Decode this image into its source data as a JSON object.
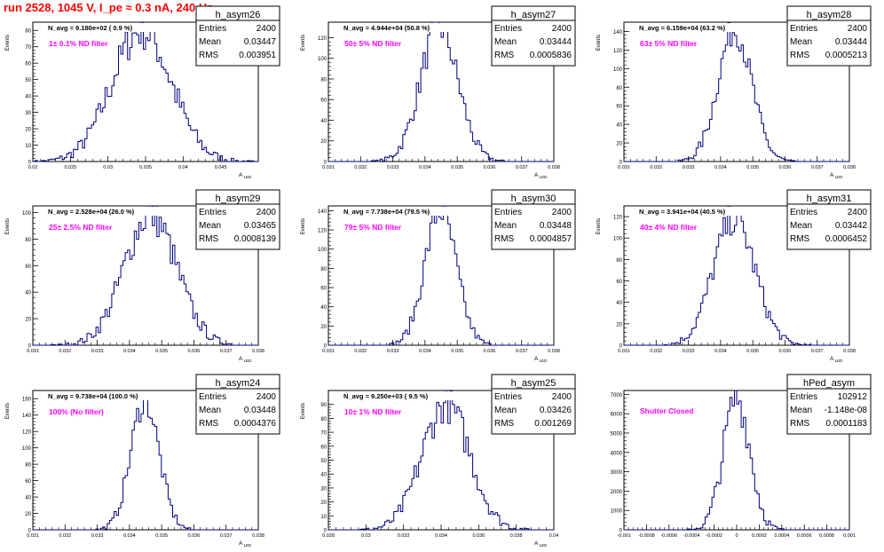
{
  "header": {
    "title": "run 2528,  1045 V, I_pe ≈ 0.3 nA, 240 Hz"
  },
  "colors": {
    "histogram_line": "#000080",
    "filter_label": "#ff00ff",
    "title": "#ff0000",
    "axes": "#000000"
  },
  "chart_data": [
    {
      "type": "histogram",
      "title": "h_asym26",
      "xlabel": "A_LED",
      "ylabel": "Events",
      "xlim": [
        0.02,
        0.05
      ],
      "ylim": [
        0,
        85
      ],
      "xticks": [
        "0.02",
        "0.025",
        "0.03",
        "0.035",
        "0.04",
        "0.045"
      ],
      "yticks": [
        "0",
        "10",
        "20",
        "30",
        "40",
        "50",
        "60",
        "70",
        "80"
      ],
      "navg": "N_avg = 9.180e+02 ( 0.9 %)",
      "label": "1± 0.1% ND filter",
      "stats": {
        "entries": "2400",
        "mean": "0.03447",
        "rms": "0.003951"
      },
      "mean": 0.03447,
      "sigma": 0.003951,
      "peak": 80
    },
    {
      "type": "histogram",
      "title": "h_asym27",
      "xlabel": "A_LED",
      "ylabel": "Events",
      "xlim": [
        0.031,
        0.038
      ],
      "ylim": [
        0,
        135
      ],
      "xticks": [
        "0.031",
        "0.032",
        "0.033",
        "0.034",
        "0.035",
        "0.036",
        "0.037",
        "0.038"
      ],
      "yticks": [
        "0",
        "20",
        "40",
        "60",
        "80",
        "100",
        "120"
      ],
      "navg": "N_avg = 4.944e+04 (50.8 %)",
      "label": "50± 5% ND filter",
      "stats": {
        "entries": "2400",
        "mean": "0.03444",
        "rms": "0.0005836"
      },
      "mean": 0.03444,
      "sigma": 0.0005836,
      "peak": 130
    },
    {
      "type": "histogram",
      "title": "h_asym28",
      "xlabel": "A_LED",
      "ylabel": "Events",
      "xlim": [
        0.031,
        0.038
      ],
      "ylim": [
        0,
        150
      ],
      "xticks": [
        "0.031",
        "0.032",
        "0.033",
        "0.034",
        "0.035",
        "0.036",
        "0.037",
        "0.038"
      ],
      "yticks": [
        "0",
        "20",
        "40",
        "60",
        "80",
        "100",
        "120",
        "140"
      ],
      "navg": "N_avg = 6.159e+04 (63.2 %)",
      "label": "63± 5% ND filter",
      "stats": {
        "entries": "2400",
        "mean": "0.03444",
        "rms": "0.0005213"
      },
      "mean": 0.03444,
      "sigma": 0.0005213,
      "peak": 142
    },
    {
      "type": "histogram",
      "title": "h_asym29",
      "xlabel": "A_LED",
      "ylabel": "Events",
      "xlim": [
        0.031,
        0.038
      ],
      "ylim": [
        0,
        105
      ],
      "xticks": [
        "0.031",
        "0.032",
        "0.033",
        "0.034",
        "0.035",
        "0.036",
        "0.037",
        "0.038"
      ],
      "yticks": [
        "0",
        "20",
        "40",
        "60",
        "80",
        "100"
      ],
      "navg": "N_avg = 2.528e+04 (26.0 %)",
      "label": "25± 2.5% ND filter",
      "stats": {
        "entries": "2400",
        "mean": "0.03465",
        "rms": "0.0008139"
      },
      "mean": 0.03465,
      "sigma": 0.0008139,
      "peak": 98
    },
    {
      "type": "histogram",
      "title": "h_asym30",
      "xlabel": "A_LED",
      "ylabel": "Events",
      "xlim": [
        0.031,
        0.038
      ],
      "ylim": [
        0,
        145
      ],
      "xticks": [
        "0.031",
        "0.032",
        "0.033",
        "0.034",
        "0.035",
        "0.036",
        "0.037",
        "0.038"
      ],
      "yticks": [
        "0",
        "20",
        "40",
        "60",
        "80",
        "100",
        "120",
        "140"
      ],
      "navg": "N_avg = 7.738e+04 (79.5 %)",
      "label": "79± 5% ND filter",
      "stats": {
        "entries": "2400",
        "mean": "0.03448",
        "rms": "0.0004857"
      },
      "mean": 0.03448,
      "sigma": 0.0004857,
      "peak": 140
    },
    {
      "type": "histogram",
      "title": "h_asym31",
      "xlabel": "A_LED",
      "ylabel": "Events",
      "xlim": [
        0.031,
        0.038
      ],
      "ylim": [
        0,
        130
      ],
      "xticks": [
        "0.031",
        "0.032",
        "0.033",
        "0.034",
        "0.035",
        "0.036",
        "0.037",
        "0.038"
      ],
      "yticks": [
        "0",
        "20",
        "40",
        "60",
        "80",
        "100",
        "120"
      ],
      "navg": "N_avg = 3.941e+04 (40.5 %)",
      "label": "40± 4% ND filter",
      "stats": {
        "entries": "2400",
        "mean": "0.03442",
        "rms": "0.0006452"
      },
      "mean": 0.03442,
      "sigma": 0.0006452,
      "peak": 118
    },
    {
      "type": "histogram",
      "title": "h_asym24",
      "xlabel": "A_LED",
      "ylabel": "Events",
      "xlim": [
        0.031,
        0.038
      ],
      "ylim": [
        0,
        170
      ],
      "xticks": [
        "0.031",
        "0.032",
        "0.033",
        "0.034",
        "0.035",
        "0.036",
        "0.037",
        "0.038"
      ],
      "yticks": [
        "0",
        "20",
        "40",
        "60",
        "80",
        "100",
        "120",
        "140",
        "160"
      ],
      "navg": "N_avg = 9.738e+04 (100.0 %)",
      "label": "100% (No filter)",
      "stats": {
        "entries": "2400",
        "mean": "0.03448",
        "rms": "0.0004376"
      },
      "mean": 0.03448,
      "sigma": 0.0004376,
      "peak": 158
    },
    {
      "type": "histogram",
      "title": "h_asym25",
      "xlabel": "A_LED",
      "ylabel": "Events",
      "xlim": [
        0.028,
        0.04
      ],
      "ylim": [
        0,
        100
      ],
      "xticks": [
        "0.028",
        "0.03",
        "0.032",
        "0.034",
        "0.036",
        "0.038",
        "0.04"
      ],
      "yticks": [
        "0",
        "10",
        "20",
        "30",
        "40",
        "50",
        "60",
        "70",
        "80",
        "90"
      ],
      "navg": "N_avg = 9.250e+03 ( 9.5 %)",
      "label": "10± 1% ND filter",
      "stats": {
        "entries": "2400",
        "mean": "0.03426",
        "rms": "0.001269"
      },
      "mean": 0.03426,
      "sigma": 0.001269,
      "peak": 90
    },
    {
      "type": "histogram",
      "title": "hPed_asym",
      "xlabel": "",
      "ylabel": "",
      "xlim": [
        -0.001,
        0.001
      ],
      "ylim": [
        0,
        7200
      ],
      "xticks": [
        "-0.001",
        "-0.0008",
        "-0.0006",
        "-0.0004",
        "-0.0002",
        "0",
        "0.0002",
        "0.0004",
        "0.0006",
        "0.0008",
        "0.001"
      ],
      "yticks": [
        "0",
        "1000",
        "2000",
        "3000",
        "4000",
        "5000",
        "6000",
        "7000"
      ],
      "navg": "",
      "label": "Shutter Closed",
      "stats": {
        "entries": "102912",
        "mean": "-1.148e-08",
        "rms": "0.0001183"
      },
      "mean": 0.0,
      "sigma": 0.0001183,
      "peak": 6800
    }
  ]
}
